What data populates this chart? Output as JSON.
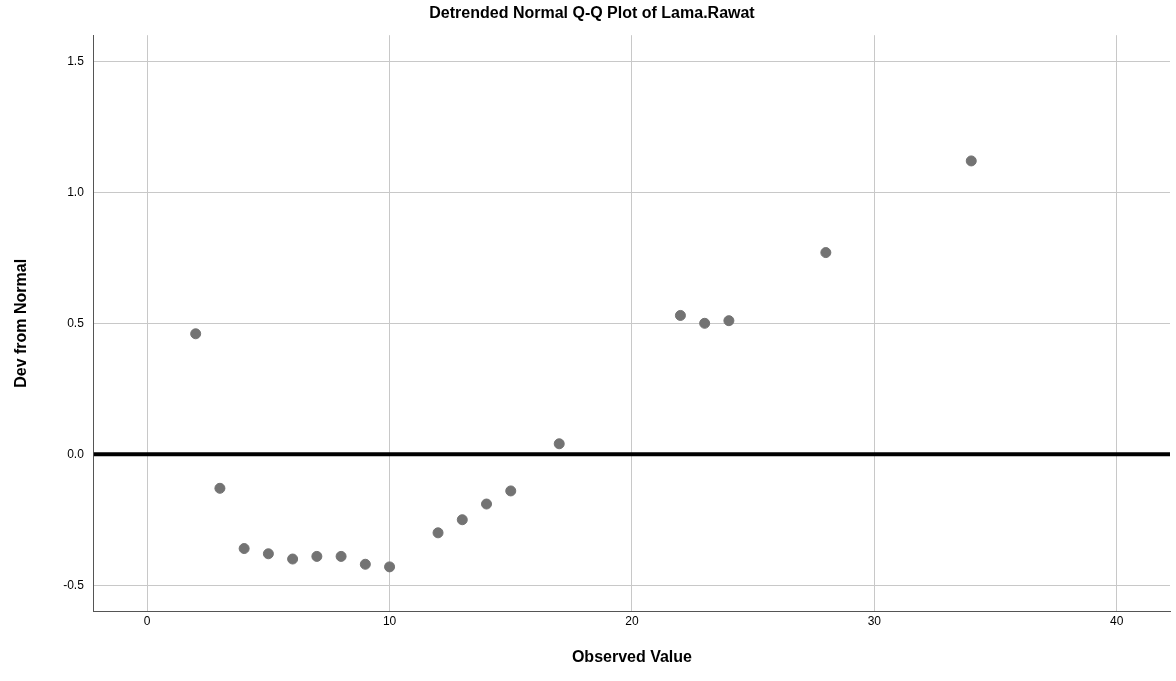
{
  "chart_data": {
    "type": "scatter",
    "title": "Detrended Normal Q-Q Plot of Lama.Rawat",
    "xlabel": "Observed Value",
    "ylabel": "Dev from Normal",
    "x": [
      2,
      3,
      4,
      5,
      6,
      7,
      8,
      9,
      10,
      12,
      13,
      14,
      15,
      17,
      22,
      23,
      24,
      28,
      34
    ],
    "values": [
      0.46,
      -0.13,
      -0.36,
      -0.38,
      -0.4,
      -0.39,
      -0.39,
      -0.42,
      -0.43,
      -0.3,
      -0.25,
      -0.19,
      -0.14,
      0.04,
      0.53,
      0.5,
      0.51,
      0.77,
      1.12
    ],
    "color": "#737373",
    "marker": "circle",
    "xlim": [
      -2.2,
      42.2
    ],
    "xticks": [
      0,
      10,
      20,
      30,
      40
    ],
    "ylim": [
      -0.6,
      1.6
    ],
    "yticks": [
      {
        "value": -0.5,
        "label": "-0.5"
      },
      {
        "value": 0,
        "label": "0.0"
      },
      {
        "value": 0.5,
        "label": "0.5"
      },
      {
        "value": 1,
        "label": "1.0"
      },
      {
        "value": 1.5,
        "label": "1.5"
      }
    ],
    "grid": true,
    "ref_lines": [
      {
        "axis": "y",
        "value": 0,
        "color": "#000000"
      }
    ]
  }
}
